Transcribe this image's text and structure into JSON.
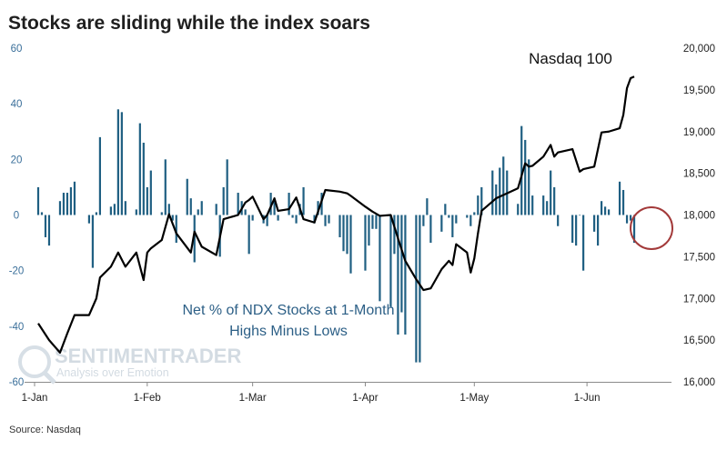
{
  "title": "Stocks are sliding while the index soars",
  "source": "Source: Nasdaq",
  "watermark": {
    "line1": "SENTIMENTRADER",
    "line2": "Analysis over Emotion"
  },
  "colors": {
    "bars": "#1f5f82",
    "line": "#000000",
    "circle": "#a33a3a",
    "left_axis_text": "#3a6f9a"
  },
  "chart_data": {
    "type": "bar+line",
    "x_tick_labels": [
      "1-Jan",
      "1-Feb",
      "1-Mar",
      "1-Apr",
      "1-May",
      "1-Jun"
    ],
    "y_left": {
      "ticks": [
        "60",
        "40",
        "20",
        "0",
        "-20",
        "-40",
        "-60"
      ],
      "range": [
        -60,
        60
      ]
    },
    "y_right": {
      "ticks": [
        "20,000",
        "19,500",
        "19,000",
        "18,500",
        "18,000",
        "17,500",
        "17,000",
        "16,500",
        "16,000"
      ],
      "range": [
        16000,
        20000
      ]
    },
    "annotations": {
      "bars_label_line1": "Net % of NDX Stocks at 1-Month",
      "bars_label_line2": "Highs Minus Lows",
      "line_label": "Nasdaq 100"
    },
    "highlight": "circle around last trading days (mid-June)",
    "series": [
      {
        "kind": "bar",
        "axis": "left",
        "x": [
          "2024-01-02",
          "2024-01-03",
          "2024-01-04",
          "2024-01-05",
          "2024-01-08",
          "2024-01-09",
          "2024-01-10",
          "2024-01-11",
          "2024-01-12",
          "2024-01-16",
          "2024-01-17",
          "2024-01-18",
          "2024-01-19",
          "2024-01-22",
          "2024-01-23",
          "2024-01-24",
          "2024-01-25",
          "2024-01-26",
          "2024-01-29",
          "2024-01-30",
          "2024-01-31",
          "2024-02-01",
          "2024-02-02",
          "2024-02-05",
          "2024-02-06",
          "2024-02-07",
          "2024-02-08",
          "2024-02-09",
          "2024-02-12",
          "2024-02-13",
          "2024-02-14",
          "2024-02-15",
          "2024-02-16",
          "2024-02-20",
          "2024-02-21",
          "2024-02-22",
          "2024-02-23",
          "2024-02-26",
          "2024-02-27",
          "2024-02-28",
          "2024-02-29",
          "2024-03-01",
          "2024-03-04",
          "2024-03-05",
          "2024-03-06",
          "2024-03-07",
          "2024-03-08",
          "2024-03-11",
          "2024-03-12",
          "2024-03-13",
          "2024-03-14",
          "2024-03-15",
          "2024-03-18",
          "2024-03-19",
          "2024-03-20",
          "2024-03-21",
          "2024-03-22",
          "2024-03-25",
          "2024-03-26",
          "2024-03-27",
          "2024-03-28",
          "2024-04-01",
          "2024-04-02",
          "2024-04-03",
          "2024-04-04",
          "2024-04-05",
          "2024-04-08",
          "2024-04-09",
          "2024-04-10",
          "2024-04-11",
          "2024-04-12",
          "2024-04-15",
          "2024-04-16",
          "2024-04-17",
          "2024-04-18",
          "2024-04-19",
          "2024-04-22",
          "2024-04-23",
          "2024-04-24",
          "2024-04-25",
          "2024-04-26",
          "2024-04-29",
          "2024-04-30",
          "2024-05-01",
          "2024-05-02",
          "2024-05-03",
          "2024-05-06",
          "2024-05-07",
          "2024-05-08",
          "2024-05-09",
          "2024-05-10",
          "2024-05-13",
          "2024-05-14",
          "2024-05-15",
          "2024-05-16",
          "2024-05-17",
          "2024-05-20",
          "2024-05-21",
          "2024-05-22",
          "2024-05-23",
          "2024-05-24",
          "2024-05-28",
          "2024-05-29",
          "2024-05-30",
          "2024-05-31",
          "2024-06-03",
          "2024-06-04",
          "2024-06-05",
          "2024-06-06",
          "2024-06-07",
          "2024-06-10",
          "2024-06-11",
          "2024-06-12",
          "2024-06-13",
          "2024-06-14"
        ],
        "values": [
          10,
          1,
          -8,
          -11,
          5,
          8,
          8,
          10,
          12,
          -3,
          -19,
          1,
          28,
          3,
          4,
          38,
          37,
          5,
          2,
          33,
          26,
          10,
          16,
          1,
          20,
          4,
          -2,
          -10,
          13,
          6,
          -17,
          2,
          5,
          4,
          -15,
          10,
          20,
          8,
          5,
          2,
          -14,
          -2,
          -3,
          -4,
          8,
          5,
          -2,
          8,
          -1,
          -3,
          4,
          10,
          -3,
          5,
          8,
          -4,
          -3,
          -8,
          -13,
          -14,
          -21,
          -20,
          -11,
          -5,
          -5,
          -31,
          -33,
          -14,
          -43,
          -35,
          -43,
          -53,
          -53,
          -4,
          6,
          -10,
          -6,
          4,
          -1,
          -8,
          -3,
          -1,
          -4,
          1,
          7,
          10,
          16,
          11,
          17,
          21,
          16,
          4,
          32,
          27,
          20,
          7,
          7,
          5,
          16,
          10,
          -4,
          -10,
          -11,
          0,
          -20,
          -6,
          -11,
          5,
          3,
          2,
          12,
          9,
          -3,
          -2,
          -10
        ]
      },
      {
        "kind": "line",
        "name": "Nasdaq 100",
        "axis": "right",
        "x": [
          "2024-01-02",
          "2024-01-05",
          "2024-01-08",
          "2024-01-10",
          "2024-01-12",
          "2024-01-16",
          "2024-01-18",
          "2024-01-19",
          "2024-01-22",
          "2024-01-24",
          "2024-01-26",
          "2024-01-29",
          "2024-01-31",
          "2024-02-01",
          "2024-02-02",
          "2024-02-05",
          "2024-02-07",
          "2024-02-09",
          "2024-02-13",
          "2024-02-14",
          "2024-02-16",
          "2024-02-20",
          "2024-02-22",
          "2024-02-26",
          "2024-02-28",
          "2024-02-29",
          "2024-03-01",
          "2024-03-04",
          "2024-03-05",
          "2024-03-07",
          "2024-03-08",
          "2024-03-11",
          "2024-03-13",
          "2024-03-15",
          "2024-03-18",
          "2024-03-21",
          "2024-03-25",
          "2024-03-27",
          "2024-03-28",
          "2024-04-01",
          "2024-04-03",
          "2024-04-05",
          "2024-04-08",
          "2024-04-10",
          "2024-04-12",
          "2024-04-15",
          "2024-04-17",
          "2024-04-19",
          "2024-04-22",
          "2024-04-24",
          "2024-04-25",
          "2024-04-26",
          "2024-04-29",
          "2024-04-30",
          "2024-05-01",
          "2024-05-02",
          "2024-05-03",
          "2024-05-07",
          "2024-05-09",
          "2024-05-13",
          "2024-05-15",
          "2024-05-16",
          "2024-05-17",
          "2024-05-20",
          "2024-05-22",
          "2024-05-23",
          "2024-05-24",
          "2024-05-28",
          "2024-05-30",
          "2024-05-31",
          "2024-06-03",
          "2024-06-05",
          "2024-06-07",
          "2024-06-10",
          "2024-06-11",
          "2024-06-12",
          "2024-06-13",
          "2024-06-14"
        ],
        "values": [
          16700,
          16500,
          16350,
          16580,
          16800,
          16800,
          17000,
          17250,
          17380,
          17550,
          17380,
          17550,
          17220,
          17550,
          17600,
          17700,
          18010,
          17780,
          17550,
          17800,
          17620,
          17520,
          17950,
          18000,
          18150,
          18180,
          18220,
          17950,
          18000,
          18200,
          18050,
          18070,
          18210,
          17950,
          17910,
          18300,
          18280,
          18260,
          18230,
          18100,
          18040,
          17990,
          18000,
          17720,
          17450,
          17230,
          17100,
          17120,
          17350,
          17450,
          17400,
          17650,
          17550,
          17310,
          17480,
          17780,
          18050,
          18200,
          18240,
          18320,
          18620,
          18580,
          18590,
          18700,
          18840,
          18700,
          18750,
          18790,
          18520,
          18550,
          18580,
          18990,
          19000,
          19040,
          19200,
          19520,
          19640,
          19660
        ]
      }
    ]
  }
}
